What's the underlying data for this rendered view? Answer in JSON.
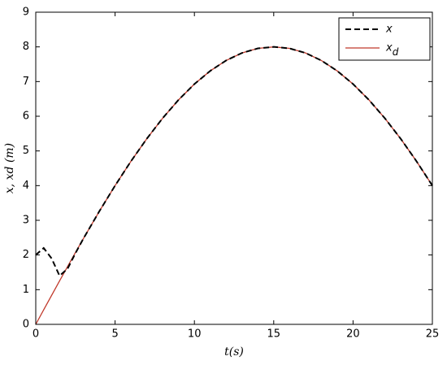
{
  "chart_data": {
    "type": "line",
    "x_label": "t(s)",
    "y_label": "x, xd (m)",
    "x": [
      0,
      0.5,
      1,
      1.5,
      2,
      2.5,
      3,
      4,
      5,
      6,
      7,
      8,
      9,
      10,
      11,
      12,
      13,
      14,
      15,
      16,
      17,
      18,
      19,
      20,
      21,
      22,
      23,
      24,
      25
    ],
    "series": [
      {
        "name": "x",
        "color": "#000000",
        "dash": true,
        "values": [
          2.0,
          2.2,
          1.9,
          1.4,
          1.6,
          2.05,
          2.47,
          3.254,
          4,
          4.702,
          5.353,
          5.945,
          6.472,
          6.928,
          7.308,
          7.608,
          7.825,
          7.956,
          8,
          7.956,
          7.825,
          7.608,
          7.308,
          6.928,
          6.472,
          5.945,
          5.353,
          4.702,
          4
        ]
      },
      {
        "name": "xd",
        "color": "#c0392b",
        "dash": false,
        "values": [
          0,
          0.419,
          0.836,
          1.251,
          1.663,
          2.071,
          2.472,
          3.254,
          4,
          4.702,
          5.353,
          5.945,
          6.472,
          6.928,
          7.308,
          7.608,
          7.825,
          7.956,
          8,
          7.956,
          7.825,
          7.608,
          7.308,
          6.928,
          6.472,
          5.945,
          5.353,
          4.702,
          4
        ]
      }
    ],
    "xlim": [
      0,
      25
    ],
    "xticks": [
      0,
      5,
      10,
      15,
      20,
      25
    ],
    "ylim": [
      0,
      9
    ],
    "yticks": [
      0,
      1,
      2,
      3,
      4,
      5,
      6,
      7,
      8,
      9
    ],
    "legend": "upper right"
  }
}
